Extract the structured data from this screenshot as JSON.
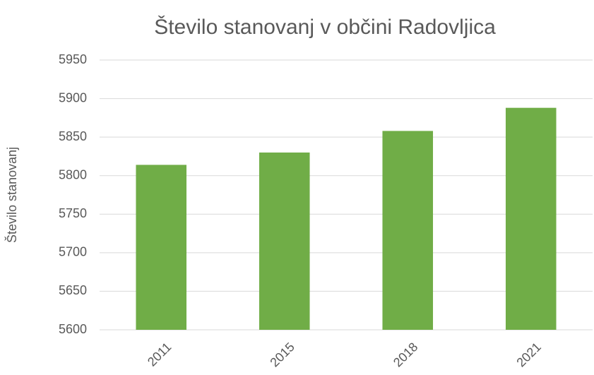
{
  "chart_data": {
    "type": "bar",
    "title": "Število stanovanj v občini Radovljica",
    "y_label": "Število stanovanj",
    "categories": [
      "2011",
      "2015",
      "2018",
      "2021"
    ],
    "values": [
      5814,
      5830,
      5858,
      5888
    ],
    "color": "#70ad47",
    "ylim": [
      5600,
      5950
    ],
    "yticks": [
      5600,
      5650,
      5700,
      5750,
      5800,
      5850,
      5900,
      5950
    ],
    "grid": true
  }
}
